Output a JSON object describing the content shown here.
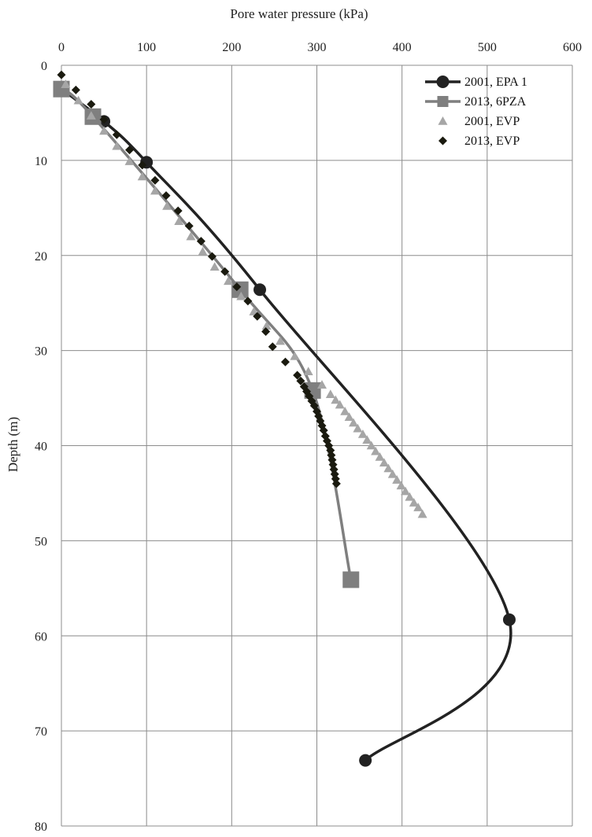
{
  "chart_data": {
    "type": "line",
    "title": "",
    "xlabel": "Pore water pressure (kPa)",
    "ylabel": "Depth  (m)",
    "xlim": [
      0,
      600
    ],
    "ylim": [
      0,
      80
    ],
    "y_inverted": true,
    "x_axis_position": "top",
    "x_ticks": [
      0,
      100,
      200,
      300,
      400,
      500,
      600
    ],
    "y_ticks": [
      0,
      10,
      20,
      30,
      40,
      50,
      60,
      70,
      80
    ],
    "grid": true,
    "legend_position": "top-right",
    "series": [
      {
        "name": "2001, EPA 1",
        "style": "smooth-line-with-markers",
        "marker": "circle",
        "color": "#222222",
        "points": [
          [
            0,
            2.5
          ],
          [
            50,
            5.9
          ],
          [
            100,
            10.2
          ],
          [
            233,
            23.6
          ],
          [
            526,
            58.3
          ],
          [
            357,
            73.1
          ]
        ]
      },
      {
        "name": "2013, 6PZA",
        "style": "smooth-line-with-markers",
        "marker": "square",
        "color": "#7f7f7f",
        "points": [
          [
            0,
            2.5
          ],
          [
            37,
            5.4
          ],
          [
            210,
            23.6
          ],
          [
            295,
            34.2
          ],
          [
            340,
            54.1
          ]
        ]
      },
      {
        "name": "2001, EVP",
        "style": "markers",
        "marker": "triangle",
        "color": "#a6a6a6",
        "points": [
          [
            5,
            2.0
          ],
          [
            20,
            3.7
          ],
          [
            35,
            5.3
          ],
          [
            50,
            6.9
          ],
          [
            65,
            8.5
          ],
          [
            80,
            10.1
          ],
          [
            95,
            11.7
          ],
          [
            110,
            13.2
          ],
          [
            124,
            14.8
          ],
          [
            138,
            16.4
          ],
          [
            152,
            18.0
          ],
          [
            166,
            19.6
          ],
          [
            180,
            21.2
          ],
          [
            196,
            22.7
          ],
          [
            211,
            24.3
          ],
          [
            226,
            25.9
          ],
          [
            241,
            27.4
          ],
          [
            257,
            29.0
          ],
          [
            274,
            30.6
          ],
          [
            290,
            32.2
          ],
          [
            306,
            33.6
          ],
          [
            316,
            34.6
          ],
          [
            322,
            35.2
          ],
          [
            327,
            35.7
          ],
          [
            333,
            36.4
          ],
          [
            338,
            37.0
          ],
          [
            343,
            37.6
          ],
          [
            348,
            38.2
          ],
          [
            354,
            38.8
          ],
          [
            359,
            39.4
          ],
          [
            364,
            40.0
          ],
          [
            369,
            40.6
          ],
          [
            374,
            41.2
          ],
          [
            379,
            41.8
          ],
          [
            384,
            42.4
          ],
          [
            389,
            43.0
          ],
          [
            394,
            43.6
          ],
          [
            399,
            44.2
          ],
          [
            404,
            44.8
          ],
          [
            409,
            45.4
          ],
          [
            414,
            46.0
          ],
          [
            419,
            46.5
          ],
          [
            424,
            47.2
          ]
        ]
      },
      {
        "name": "2013, EVP",
        "style": "markers",
        "marker": "diamond",
        "color": "#1a1a0f",
        "points": [
          [
            0,
            1.0
          ],
          [
            17,
            2.6
          ],
          [
            35,
            4.1
          ],
          [
            50,
            5.7
          ],
          [
            65,
            7.3
          ],
          [
            80,
            8.9
          ],
          [
            95,
            10.5
          ],
          [
            110,
            12.1
          ],
          [
            123,
            13.7
          ],
          [
            137,
            15.3
          ],
          [
            150,
            16.9
          ],
          [
            164,
            18.5
          ],
          [
            177,
            20.1
          ],
          [
            192,
            21.7
          ],
          [
            206,
            23.3
          ],
          [
            219,
            24.8
          ],
          [
            230,
            26.4
          ],
          [
            240,
            28.0
          ],
          [
            248,
            29.6
          ],
          [
            263,
            31.2
          ],
          [
            277,
            32.6
          ],
          [
            281,
            33.2
          ],
          [
            285,
            33.8
          ],
          [
            288,
            34.3
          ],
          [
            291,
            34.8
          ],
          [
            294,
            35.3
          ],
          [
            297,
            35.8
          ],
          [
            300,
            36.4
          ],
          [
            302,
            36.9
          ],
          [
            304,
            37.4
          ],
          [
            306,
            37.9
          ],
          [
            308,
            38.4
          ],
          [
            310,
            39.0
          ],
          [
            312,
            39.5
          ],
          [
            314,
            40.0
          ],
          [
            316,
            40.5
          ],
          [
            317,
            41.0
          ],
          [
            318,
            41.5
          ],
          [
            319,
            42.0
          ],
          [
            320,
            42.5
          ],
          [
            321,
            43.0
          ],
          [
            322,
            43.5
          ],
          [
            323,
            44.0
          ]
        ]
      }
    ]
  }
}
